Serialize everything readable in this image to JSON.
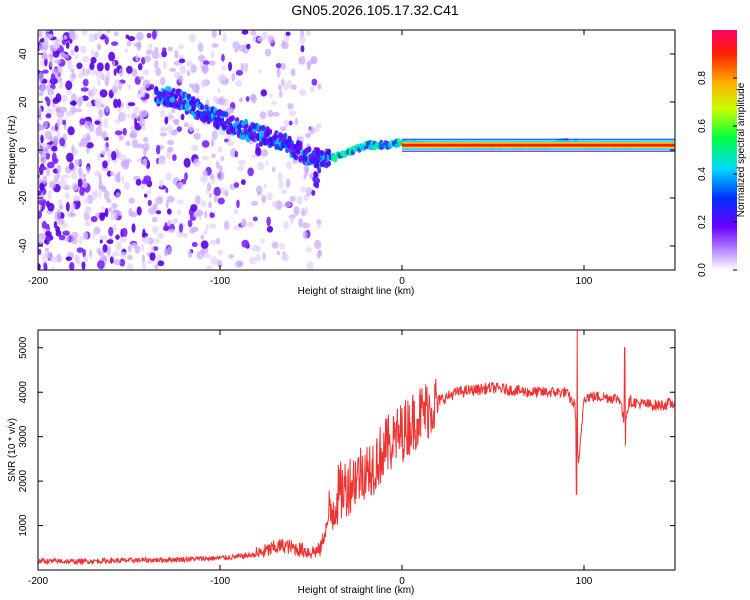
{
  "title": "GN05.2026.105.17.32.C41",
  "chart_data": [
    {
      "type": "heatmap",
      "xlabel": "Height of straight line (km)",
      "ylabel": "Frequency (Hz)",
      "xlim": [
        -200,
        150
      ],
      "ylim": [
        -50,
        50
      ],
      "xticks": [
        -200,
        -100,
        0,
        100
      ],
      "yticks": [
        -40,
        -20,
        0,
        20,
        40
      ],
      "colorbar": {
        "label": "Normalized spectral amplitude",
        "range": [
          0,
          1
        ],
        "ticks": [
          "0.0",
          "0.2",
          "0.4",
          "0.6",
          "0.8"
        ]
      },
      "ridge": {
        "description_points": [
          {
            "x": -125,
            "y": 22
          },
          {
            "x": -105,
            "y": 14
          },
          {
            "x": -85,
            "y": 8
          },
          {
            "x": -65,
            "y": 3
          },
          {
            "x": -50,
            "y": -3
          },
          {
            "x": -40,
            "y": -4
          },
          {
            "x": -30,
            "y": -1
          },
          {
            "x": -20,
            "y": 2
          },
          {
            "x": -10,
            "y": 2
          },
          {
            "x": 0,
            "y": 3
          },
          {
            "x": 20,
            "y": 2
          },
          {
            "x": 80,
            "y": 2
          },
          {
            "x": 90,
            "y": 4
          },
          {
            "x": 100,
            "y": 2
          },
          {
            "x": 120,
            "y": 2
          },
          {
            "x": 150,
            "y": 2
          }
        ]
      }
    },
    {
      "type": "line",
      "xlabel": "Height of straight line (km)",
      "ylabel": "SNR (10 * v/v)",
      "xlim": [
        -200,
        150
      ],
      "ylim": [
        0,
        5400
      ],
      "xticks": [
        -200,
        -100,
        0,
        100
      ],
      "yticks": [
        1000,
        2000,
        3000,
        4000,
        5000
      ],
      "series": [
        {
          "name": "SNR",
          "color": "#ee3333",
          "x": [
            -200,
            -180,
            -160,
            -140,
            -120,
            -100,
            -90,
            -80,
            -75,
            -70,
            -65,
            -60,
            -55,
            -50,
            -45,
            -40,
            -35,
            -30,
            -25,
            -20,
            -15,
            -10,
            -5,
            0,
            10,
            20,
            30,
            40,
            50,
            60,
            70,
            80,
            90,
            95,
            97,
            100,
            110,
            120,
            122,
            125,
            130,
            140,
            150
          ],
          "values": [
            200,
            190,
            210,
            220,
            240,
            270,
            300,
            350,
            420,
            500,
            550,
            500,
            450,
            400,
            450,
            1200,
            1700,
            1900,
            2100,
            2300,
            2400,
            2700,
            2900,
            3100,
            3500,
            3800,
            4000,
            4050,
            4100,
            4050,
            4000,
            4000,
            4000,
            3700,
            2300,
            3900,
            3900,
            3850,
            3300,
            3800,
            3750,
            3700,
            3750
          ]
        }
      ]
    }
  ]
}
